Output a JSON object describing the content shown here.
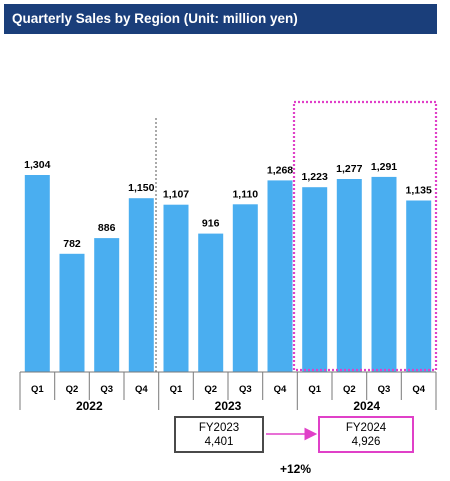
{
  "title": "Quarterly Sales by Region (Unit: million yen)",
  "colors": {
    "bar": "#4aaef0",
    "title_bg": "#1a3e7a",
    "highlight": "#e040c8",
    "box_border": "#4a4a4a"
  },
  "chart_data": {
    "type": "bar",
    "title": "Quarterly Sales by Region (Unit: million yen)",
    "categories": [
      "Q1",
      "Q2",
      "Q3",
      "Q4",
      "Q1",
      "Q2",
      "Q3",
      "Q4",
      "Q1",
      "Q2",
      "Q3",
      "Q4"
    ],
    "years": [
      {
        "label": "2022",
        "count": 4
      },
      {
        "label": "2023",
        "count": 4
      },
      {
        "label": "2024",
        "count": 4
      }
    ],
    "values": [
      1304,
      782,
      886,
      1150,
      1107,
      916,
      1110,
      1268,
      1223,
      1277,
      1291,
      1135
    ],
    "value_labels": [
      "1,304",
      "782",
      "886",
      "1,150",
      "1,107",
      "916",
      "1,110",
      "1,268",
      "1,223",
      "1,277",
      "1,291",
      "1,135"
    ],
    "ylim": [
      0,
      1800
    ],
    "grid": false,
    "highlighted_year": "2024"
  },
  "summary": {
    "fy2023": {
      "label": "FY2023",
      "value": "4,401"
    },
    "fy2024": {
      "label": "FY2024",
      "value": "4,926"
    },
    "growth": "+12%"
  }
}
